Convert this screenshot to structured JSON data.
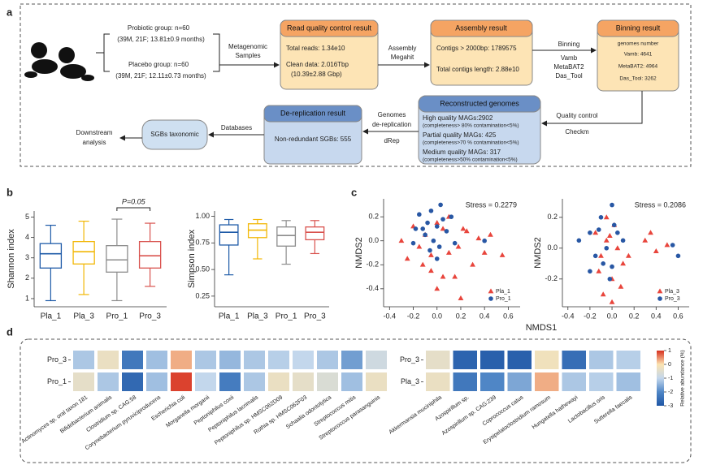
{
  "labels": [
    "a",
    "b",
    "c",
    "d"
  ],
  "panel_a": {
    "groups": [
      {
        "name": "Probiotic group: n=60",
        "detail": "(39M, 21F; 13.81±0.9 months)"
      },
      {
        "name": "Placebo group: n=60",
        "detail": "(39M, 21F; 12.11±0.73 months)"
      }
    ],
    "edges": {
      "samples": [
        "Metagenomic",
        "Samples"
      ],
      "assembly": [
        "Assembly",
        "Megahit"
      ],
      "binning": [
        "Binning",
        "Vamb",
        "MetaBAT2",
        "Das_Tool"
      ],
      "quality": [
        "Quality control",
        "Checkm"
      ],
      "dereplication": [
        "Genomes",
        "de-replication",
        "dRep"
      ],
      "databases": [
        "Databases"
      ]
    },
    "boxes": {
      "qc": {
        "title": "Read quality control result",
        "lines": [
          "Total reads: 1.34e10",
          "Clean data: 2.016Tbp",
          "(10.39±2.88 Gbp)"
        ]
      },
      "assembly": {
        "title": "Assembly result",
        "lines": [
          "Contigs > 2000bp: 1789575",
          "Total contigs length: 2.88e10"
        ]
      },
      "binning": {
        "title": "Binning result",
        "lines": [
          "genomes number",
          "Vamb: 4641",
          "MetaBAT2: 4964",
          "Das_Tool: 3262"
        ]
      },
      "genomes": {
        "title": "Reconstructed genomes",
        "lines": [
          "High quality MAGs:2902",
          "(completeness> 80% contamination<5%)",
          "Partial quality MAGs: 425",
          "(completeness>70 % contamination<5%)",
          "Medium quality MAGs: 317",
          "(completeness>50% contamination<5%)"
        ]
      },
      "derep": {
        "title": "De-replication result",
        "lines": [
          "Non-redundant SGBs: 555"
        ]
      },
      "sgb": {
        "title": "SGBs taxonomic"
      },
      "downstream": [
        "Downstream",
        "analysis"
      ]
    }
  },
  "chart_data": [
    {
      "type": "boxplot",
      "ylabel": "Shannon index",
      "categories": [
        "Pla_1",
        "Pla_3",
        "Pro_1",
        "Pro_3"
      ],
      "colors": [
        "#1f5ba8",
        "#f2b705",
        "#8c8c8c",
        "#d9534f"
      ],
      "stats": [
        {
          "min": 0.9,
          "q1": 2.5,
          "median": 3.2,
          "q3": 3.7,
          "max": 4.6
        },
        {
          "min": 1.2,
          "q1": 2.7,
          "median": 3.3,
          "q3": 3.8,
          "max": 4.8
        },
        {
          "min": 0.9,
          "q1": 2.3,
          "median": 2.9,
          "q3": 3.6,
          "max": 4.9
        },
        {
          "min": 1.6,
          "q1": 2.5,
          "median": 3.1,
          "q3": 3.8,
          "max": 4.7
        }
      ],
      "annotation": "P=0.05",
      "ylim": [
        0.6,
        5.3
      ],
      "yticks": [
        1,
        2,
        3,
        4,
        5
      ]
    },
    {
      "type": "boxplot",
      "ylabel": "Simpson index",
      "categories": [
        "Pla_1",
        "Pla_3",
        "Pro_1",
        "Pro_3"
      ],
      "colors": [
        "#1f5ba8",
        "#f2b705",
        "#8c8c8c",
        "#d9534f"
      ],
      "stats": [
        {
          "min": 0.45,
          "q1": 0.73,
          "median": 0.85,
          "q3": 0.92,
          "max": 0.97
        },
        {
          "min": 0.6,
          "q1": 0.8,
          "median": 0.87,
          "q3": 0.93,
          "max": 0.97
        },
        {
          "min": 0.55,
          "q1": 0.72,
          "median": 0.82,
          "q3": 0.9,
          "max": 0.96
        },
        {
          "min": 0.65,
          "q1": 0.78,
          "median": 0.85,
          "q3": 0.9,
          "max": 0.96
        }
      ],
      "ylim": [
        0.15,
        1.05
      ],
      "yticks": [
        0.25,
        {
          "value": 0.5,
          "label": "0.50"
        },
        0.75,
        {
          "value": 1,
          "label": "1.00"
        }
      ]
    },
    {
      "type": "scatter",
      "ylabel": "NMDS2",
      "annotation": "Stress = 0.2279",
      "legend": "lower right",
      "series": [
        {
          "name": "Pla_1",
          "color": "#e8453c",
          "marker": "triangle",
          "x": [
            -0.3,
            -0.25,
            -0.2,
            -0.15,
            -0.1,
            -0.05,
            0,
            0.05,
            0.1,
            0.15,
            0.2,
            0.25,
            0.3,
            0.35,
            0.4,
            0.45,
            0.55,
            0,
            -0.05,
            0.1,
            0.18,
            0.05,
            -0.12,
            0.22
          ],
          "y": [
            0,
            -0.15,
            0.12,
            -0.05,
            0.05,
            -0.25,
            -0.4,
            0.1,
            -0.1,
            -0.3,
            -0.48,
            0.08,
            -0.2,
            0.02,
            -0.1,
            0.05,
            -0.12,
            0.15,
            -0.12,
            0.2,
            -0.05,
            -0.3,
            -0.2,
            0.1
          ]
        },
        {
          "name": "Pro_1",
          "color": "#2857a4",
          "marker": "circle",
          "x": [
            -0.15,
            -0.12,
            -0.1,
            -0.08,
            -0.05,
            -0.03,
            0,
            0.02,
            0.05,
            0.08,
            -0.2,
            0.12,
            -0.18,
            0,
            0.4,
            -0.06,
            0.03,
            0.15
          ],
          "y": [
            0.22,
            0.1,
            0.05,
            0.15,
            0.25,
            0,
            0.12,
            -0.05,
            0.18,
            0.08,
            -0.02,
            0.2,
            0.1,
            -0.15,
            0,
            -0.08,
            0.3,
            -0.02
          ]
        }
      ],
      "xlim": [
        -0.45,
        0.7
      ],
      "xticks": [
        -0.4,
        -0.2,
        {
          "value": 0,
          "label": "0.0"
        },
        0.2,
        0.4,
        0.6
      ],
      "ylim": [
        -0.55,
        0.35
      ],
      "yticks": [
        0.2,
        {
          "value": 0,
          "label": "0.0"
        },
        -0.2,
        -0.4
      ]
    },
    {
      "type": "scatter",
      "ylabel": "NMDS2",
      "xlabel": "NMDS1",
      "annotation": "Stress = 0.2086",
      "legend": "lower right",
      "series": [
        {
          "name": "Pla_3",
          "color": "#e8453c",
          "marker": "triangle",
          "x": [
            -0.15,
            -0.1,
            -0.05,
            0,
            0.05,
            0.1,
            -0.08,
            0.02,
            0.3,
            0.35,
            0.4,
            0.5,
            -0.12,
            0.08,
            -0.02,
            0.15,
            0,
            -0.05
          ],
          "y": [
            0.1,
            -0.05,
            0.05,
            -0.2,
            0,
            -0.1,
            -0.3,
            0.15,
            0.05,
            0.1,
            -0.02,
            0.02,
            -0.15,
            -0.25,
            0.08,
            -0.05,
            -0.35,
            0.2
          ]
        },
        {
          "name": "Pro_3",
          "color": "#2857a4",
          "marker": "circle",
          "x": [
            -0.3,
            -0.2,
            -0.15,
            -0.1,
            -0.05,
            0,
            0.05,
            -0.08,
            0.02,
            0.1,
            -0.02,
            0.55,
            -0.12,
            0,
            0.6,
            -0.2
          ],
          "y": [
            0.05,
            0.1,
            -0.05,
            0.2,
            0,
            0.28,
            0.1,
            -0.1,
            0.15,
            0.05,
            -0.2,
            0.02,
            0.12,
            -0.12,
            -0.05,
            -0.15
          ]
        }
      ],
      "xlim": [
        -0.45,
        0.7
      ],
      "xticks": [
        -0.4,
        -0.2,
        {
          "value": 0,
          "label": "0.0"
        },
        0.2,
        0.4,
        0.6
      ],
      "ylim": [
        -0.38,
        0.32
      ],
      "yticks": [
        0.2,
        {
          "value": 0,
          "label": "0.0"
        },
        -0.2
      ]
    },
    {
      "type": "heatmap",
      "rows": [
        "Pro_3",
        "Pro_1"
      ],
      "columns": [
        "Actinomyces sp. oral taxon 181",
        "Bifidobacterium animalis",
        "Clostridium sp. CAG:58",
        "Corynebacterium pyruviciproducens",
        "Escherichia coli",
        "Morganella morganii",
        "Peptoniphilus coxii",
        "Peptoniphilus lacrimalis",
        "Peptoniphilus sp. HMSC062D09",
        "Rothia sp. HMSC062F03",
        "Schaalia odontolytica",
        "Streptococcus mitis",
        "Streptococcus parasanguinis"
      ],
      "values": [
        [
          -1.2,
          -0.3,
          -2.3,
          -1.3,
          0.3,
          -1.2,
          -1.4,
          -1.2,
          -1.1,
          -1.0,
          -1.2,
          -1.7,
          -0.8
        ],
        [
          -0.4,
          -1.2,
          -2.6,
          -1.3,
          0.9,
          -1.0,
          -2.2,
          -1.2,
          -0.3,
          -0.4,
          -0.6,
          -1.3,
          -0.3
        ]
      ],
      "zlim": [
        -3,
        1
      ],
      "colors": [
        "#1f56a5",
        "#4f86c6",
        "#c3d7ec",
        "#fbe3b0",
        "#d7301f"
      ]
    },
    {
      "type": "heatmap",
      "rows": [
        "Pro_3",
        "Pla_3"
      ],
      "columns": [
        "Akkermansia muciniphila",
        "Azospirillum sp.",
        "Azospirillum sp. CAG:239",
        "Coprococcus catus",
        "Erysipelatoclostridium ramosum",
        "Hungatella hathewayi",
        "Lactobacillus oris",
        "Sutterella faecalis"
      ],
      "values": [
        [
          -0.4,
          -2.7,
          -2.8,
          -2.8,
          -0.2,
          -2.5,
          -1.2,
          -1.1
        ],
        [
          -0.3,
          -2.3,
          -2.0,
          -1.6,
          0.3,
          -1.2,
          -1.1,
          -1.3
        ]
      ],
      "zlim": [
        -3,
        1
      ],
      "zticks": [
        1,
        0,
        -1,
        -2,
        -3
      ],
      "colorbar_label": "Relative abundance (%)",
      "colors": [
        "#1f56a5",
        "#4f86c6",
        "#c3d7ec",
        "#fbe3b0",
        "#d7301f"
      ]
    }
  ]
}
